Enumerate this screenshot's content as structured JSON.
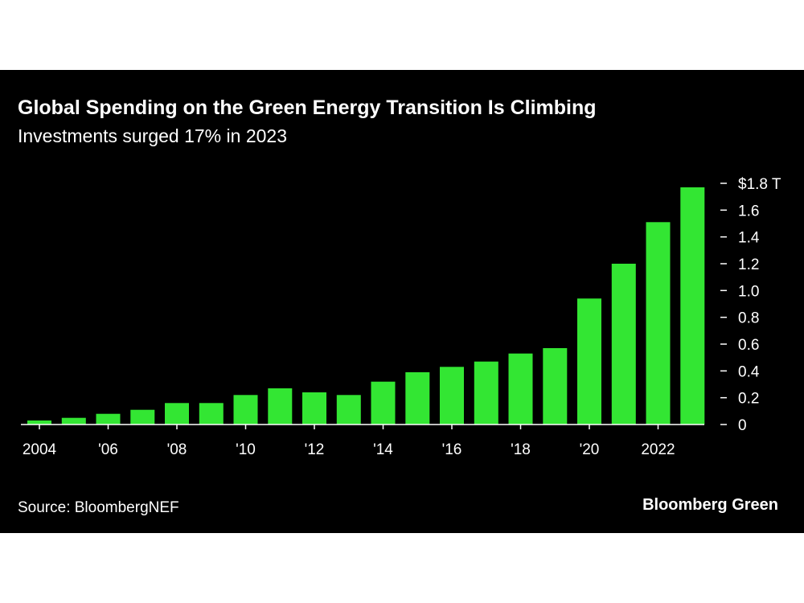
{
  "header": {
    "title": "Global Spending on the Green Energy Transition Is Climbing",
    "subtitle": "Investments surged 17% in 2023"
  },
  "footer": {
    "source": "Source: BloombergNEF",
    "brand": "Bloomberg Green"
  },
  "colors": {
    "background": "#000000",
    "bar": "#33e633",
    "text": "#ffffff"
  },
  "chart_data": {
    "type": "bar",
    "title": "Global Spending on the Green Energy Transition Is Climbing",
    "subtitle": "Investments surged 17% in 2023",
    "categories": [
      2004,
      2005,
      2006,
      2007,
      2008,
      2009,
      2010,
      2011,
      2012,
      2013,
      2014,
      2015,
      2016,
      2017,
      2018,
      2019,
      2020,
      2021,
      2022,
      2023
    ],
    "values": [
      0.03,
      0.05,
      0.08,
      0.11,
      0.16,
      0.16,
      0.22,
      0.27,
      0.24,
      0.22,
      0.32,
      0.39,
      0.43,
      0.47,
      0.53,
      0.57,
      0.94,
      1.2,
      1.51,
      1.77
    ],
    "x_tick_labels": [
      {
        "x": 2004,
        "label": "2004"
      },
      {
        "x": 2006,
        "label": "'06"
      },
      {
        "x": 2008,
        "label": "'08"
      },
      {
        "x": 2010,
        "label": "'10"
      },
      {
        "x": 2012,
        "label": "'12"
      },
      {
        "x": 2014,
        "label": "'14"
      },
      {
        "x": 2016,
        "label": "'16"
      },
      {
        "x": 2018,
        "label": "'18"
      },
      {
        "x": 2020,
        "label": "'20"
      },
      {
        "x": 2022,
        "label": "2022"
      }
    ],
    "y_ticks": [
      {
        "value": 1.8,
        "label": "$1.8 T"
      },
      {
        "value": 1.6,
        "label": "1.6"
      },
      {
        "value": 1.4,
        "label": "1.4"
      },
      {
        "value": 1.2,
        "label": "1.2"
      },
      {
        "value": 1.0,
        "label": "1.0"
      },
      {
        "value": 0.8,
        "label": "0.8"
      },
      {
        "value": 0.6,
        "label": "0.6"
      },
      {
        "value": 0.4,
        "label": "0.4"
      },
      {
        "value": 0.2,
        "label": "0.2"
      },
      {
        "value": 0,
        "label": "0"
      }
    ],
    "ylim": [
      0,
      1.8
    ],
    "y_axis_position": "right",
    "grid": false,
    "legend": "none"
  }
}
